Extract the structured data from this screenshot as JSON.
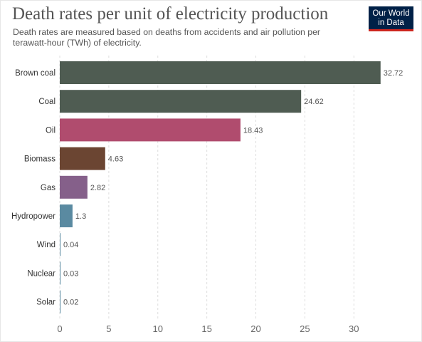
{
  "header": {
    "title": "Death rates per unit of electricity production",
    "subtitle": "Death rates are measured based on deaths from accidents and air pollution per terawatt-hour (TWh) of electricity.",
    "logo_line1": "Our World",
    "logo_line2": "in Data",
    "logo_bg_color": "#002147",
    "logo_accent_color": "#ce261e"
  },
  "chart_data": {
    "type": "bar",
    "orientation": "horizontal",
    "categories": [
      "Brown coal",
      "Coal",
      "Oil",
      "Biomass",
      "Gas",
      "Hydropower",
      "Wind",
      "Nuclear",
      "Solar"
    ],
    "values": [
      32.72,
      24.62,
      18.43,
      4.63,
      2.82,
      1.3,
      0.04,
      0.03,
      0.02
    ],
    "value_labels": [
      "32.72",
      "24.62",
      "18.43",
      "4.63",
      "2.82",
      "1.3",
      "0.04",
      "0.03",
      "0.02"
    ],
    "colors": [
      "#4f5c52",
      "#4f5c52",
      "#b04c6e",
      "#6b4532",
      "#85608a",
      "#5a8aa1",
      "#5a8aa1",
      "#5a8aa1",
      "#5a8aa1"
    ],
    "xlim": [
      0,
      33
    ],
    "xticks": [
      0,
      5,
      10,
      15,
      20,
      25,
      30
    ],
    "grid": true,
    "xlabel": "",
    "ylabel": ""
  }
}
